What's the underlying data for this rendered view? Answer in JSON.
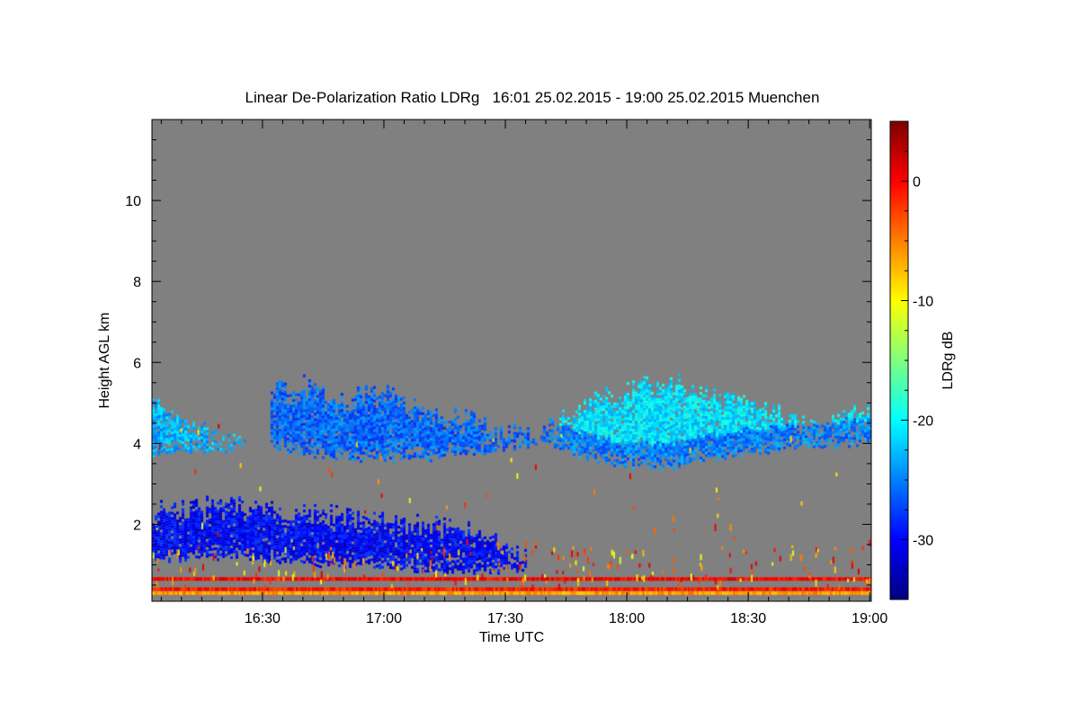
{
  "chart_data": {
    "type": "heatmap",
    "title": "Linear De-Polarization Ratio LDRg   16:01 25.02.2015 - 19:00 25.02.2015 Muenchen",
    "xlabel": "Time UTC",
    "ylabel": "Height AGL km",
    "x_unit": "minutes after 16:00 UTC",
    "xlim": [
      2.7,
      180.4
    ],
    "ylim": [
      0.1,
      12.0
    ],
    "xticks": [
      {
        "value": 30,
        "label": "16:30"
      },
      {
        "value": 60,
        "label": "17:00"
      },
      {
        "value": 90,
        "label": "17:30"
      },
      {
        "value": 120,
        "label": "18:00"
      },
      {
        "value": 150,
        "label": "18:30"
      },
      {
        "value": 180,
        "label": "19:00"
      }
    ],
    "yticks": [
      {
        "value": 2,
        "label": "2"
      },
      {
        "value": 4,
        "label": "4"
      },
      {
        "value": 6,
        "label": "6"
      },
      {
        "value": 8,
        "label": "8"
      },
      {
        "value": 10,
        "label": "10"
      }
    ],
    "background_color": "#808080",
    "colorbar": {
      "label": "LDRg dB",
      "range": [
        -35,
        5
      ],
      "colormap": "jet",
      "ticks": [
        {
          "value": 0,
          "label": "0"
        },
        {
          "value": -10,
          "label": "-10"
        },
        {
          "value": -20,
          "label": "-20"
        },
        {
          "value": -30,
          "label": "-30"
        }
      ]
    },
    "features": [
      {
        "name": "low cloud layer",
        "t_range": [
          2.7,
          95
        ],
        "profile": [
          [
            3,
            1.1,
            2.4
          ],
          [
            20,
            1.2,
            2.5
          ],
          [
            40,
            1.0,
            2.3
          ],
          [
            55,
            1.0,
            2.2
          ],
          [
            70,
            0.85,
            2.0
          ],
          [
            85,
            0.8,
            1.8
          ],
          [
            93,
            0.9,
            1.2
          ]
        ],
        "ldr_db": -30
      },
      {
        "name": "upper cloud west",
        "t_range": [
          2.7,
          26
        ],
        "profile": [
          [
            3,
            3.7,
            5.1
          ],
          [
            10,
            3.8,
            4.7
          ],
          [
            20,
            3.8,
            4.1
          ],
          [
            26,
            3.9,
            4.0
          ]
        ],
        "ldr_db": -23
      },
      {
        "name": "upper cloud middle",
        "t_range": [
          32,
          100
        ],
        "profile": [
          [
            32,
            3.9,
            5.3
          ],
          [
            40,
            3.7,
            5.5
          ],
          [
            50,
            3.6,
            5.1
          ],
          [
            58,
            3.6,
            5.3
          ],
          [
            68,
            3.6,
            4.9
          ],
          [
            80,
            3.7,
            4.6
          ],
          [
            92,
            3.9,
            4.3
          ],
          [
            100,
            4.0,
            4.2
          ]
        ],
        "ldr_db": -26
      },
      {
        "name": "upper cloud east",
        "t_range": [
          100,
          180.4
        ],
        "profile": [
          [
            100,
            4.0,
            4.4
          ],
          [
            108,
            3.7,
            5.0
          ],
          [
            120,
            3.4,
            5.3
          ],
          [
            130,
            3.4,
            5.6
          ],
          [
            140,
            3.6,
            5.2
          ],
          [
            155,
            3.8,
            4.9
          ],
          [
            165,
            3.9,
            4.5
          ],
          [
            180,
            4.0,
            4.9
          ]
        ],
        "ldr_db": -21
      },
      {
        "name": "near-ground band",
        "height_km": 0.65,
        "ldr_db": 0
      },
      {
        "name": "near-ground band",
        "height_km": 0.4,
        "ldr_db": -1
      },
      {
        "name": "near-ground band",
        "height_km": 0.3,
        "ldr_db": -6
      }
    ]
  }
}
